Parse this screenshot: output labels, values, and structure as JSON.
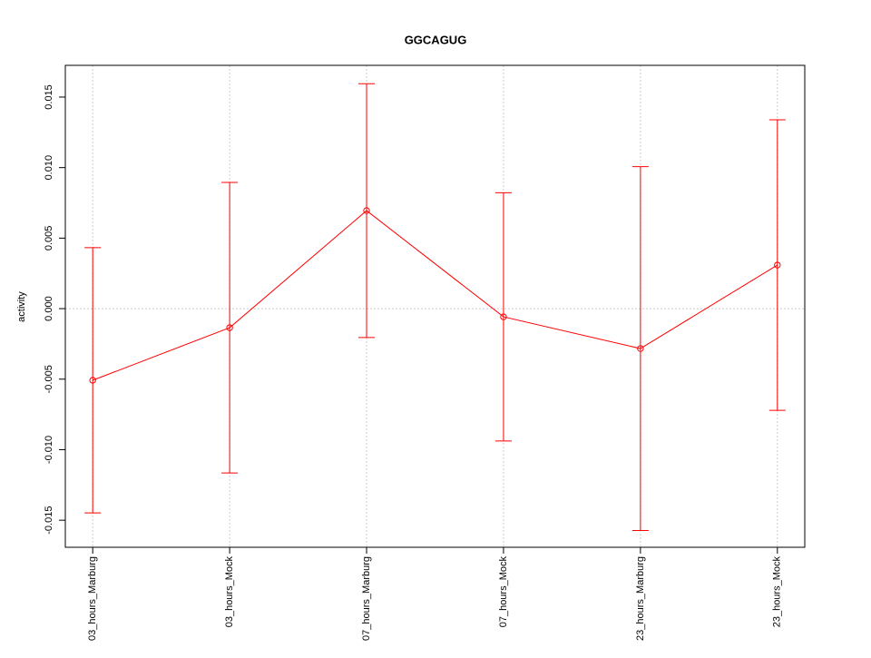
{
  "chart_data": {
    "type": "line",
    "title": "GGCAGUG",
    "y_label": "activity",
    "categories": [
      "03_hours_Marburg",
      "03_hours_Mock",
      "07_hours_Marburg",
      "07_hours_Mock",
      "23_hours_Marburg",
      "23_hours_Mock"
    ],
    "series": [
      {
        "color": "#ff0000",
        "values": [
          -0.00508,
          -0.00135,
          0.00695,
          -0.00058,
          -0.00283,
          0.00309
        ],
        "errors": [
          0.0094,
          0.0103,
          0.009,
          0.0088,
          0.0129,
          0.0103
        ]
      }
    ],
    "ylim": [
      -0.01692,
      0.01725
    ],
    "yticks": [
      0.015,
      {
        "value": 0.01,
        "label": "0.010"
      },
      0.005,
      {
        "value": 0,
        "label": "0.000"
      },
      -0.005,
      {
        "value": -0.01,
        "label": "-0.010"
      },
      -0.015
    ],
    "hlines": [
      0
    ],
    "grid_x": true
  }
}
